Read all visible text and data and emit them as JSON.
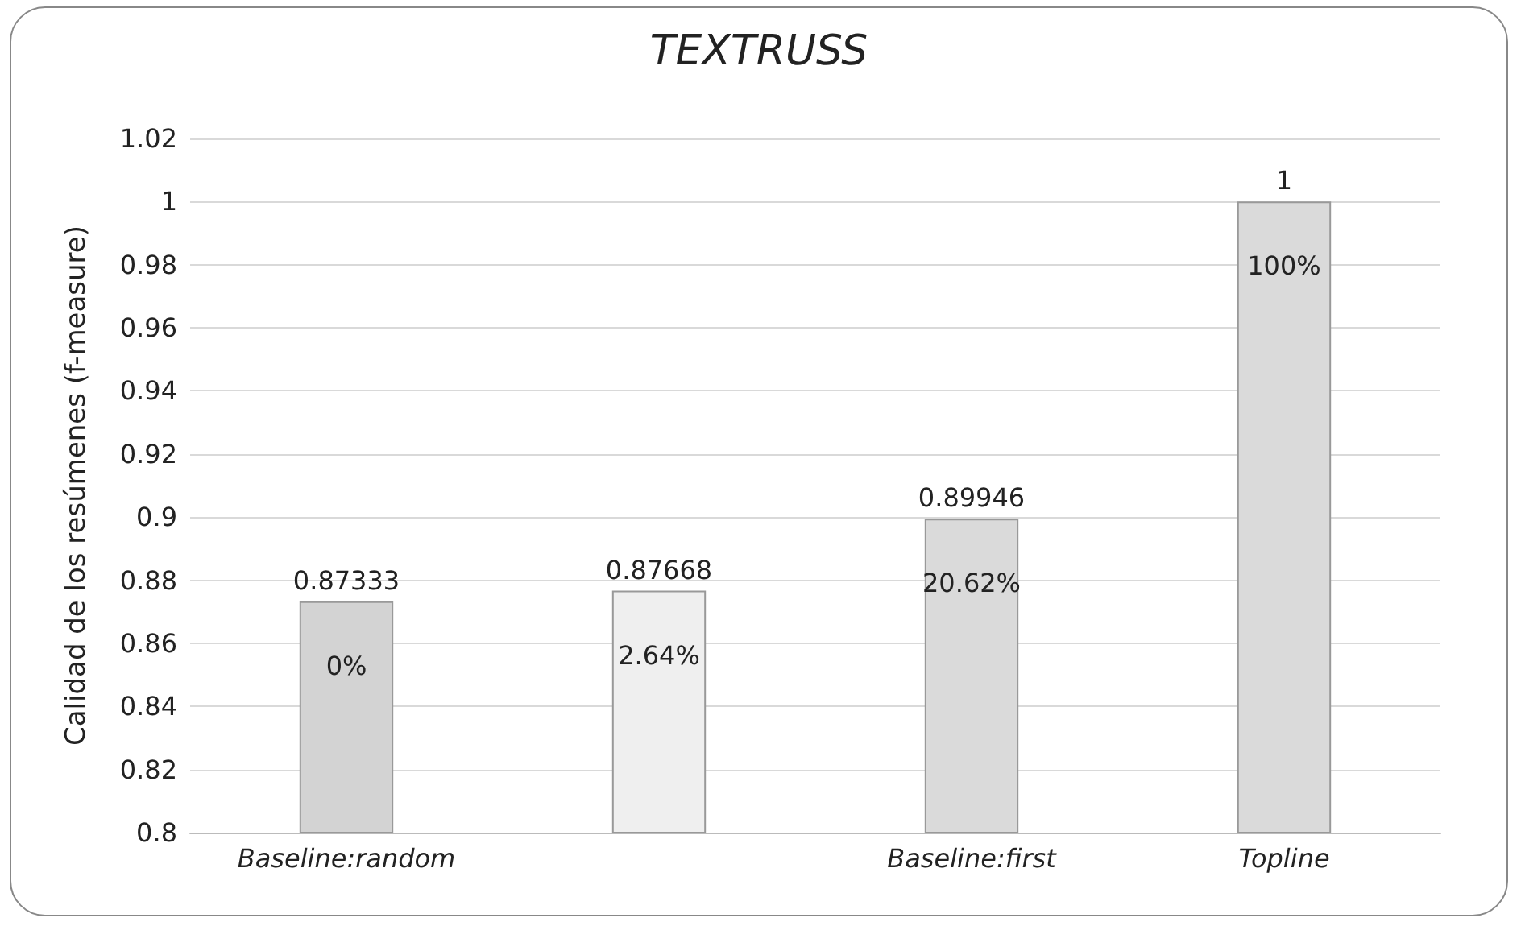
{
  "chart_data": {
    "type": "bar",
    "title": "TEXTRUSS",
    "ylabel": "Calidad de los resúmenes (f-measure)",
    "categories": [
      "Baseline:random",
      null,
      "Baseline:first",
      "Topline"
    ],
    "values": [
      0.87333,
      0.87668,
      0.89946,
      1
    ],
    "colors": [
      "#d3d3d3",
      "#efefef",
      "#dadada",
      "#dadada"
    ],
    "annotations": [
      "0%",
      "2.64%",
      "20.62%",
      "100%"
    ],
    "data_labels": true,
    "ylim": [
      0.8,
      1.02
    ],
    "yticks": [
      0.8,
      0.82,
      0.84,
      0.86,
      0.88,
      0.9,
      0.92,
      0.94,
      0.96,
      0.98,
      1,
      1.02
    ],
    "grid": "y"
  }
}
